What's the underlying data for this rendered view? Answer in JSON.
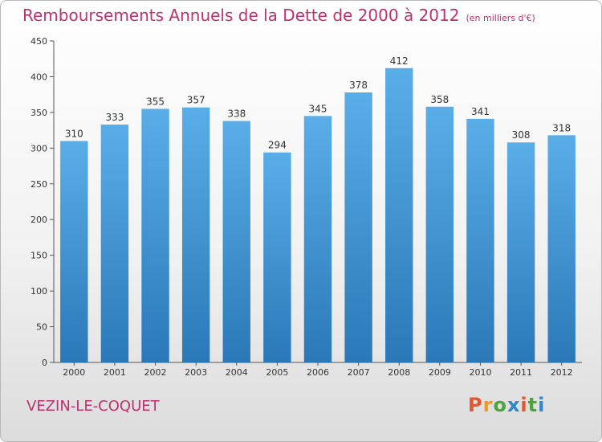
{
  "title": "Remboursements Annuels de la Dette de 2000 à 2012",
  "unit": "(en milliers d'€)",
  "city": "VEZIN-LE-COQUET",
  "logo": "Proxiti",
  "colors": {
    "bar_top": "#5aaee8",
    "bar_bottom": "#2a78b8",
    "title": "#c0306e"
  },
  "chart_data": {
    "type": "bar",
    "title": "Remboursements Annuels de la Dette de 2000 à 2012",
    "xlabel": "",
    "ylabel": "",
    "categories": [
      "2000",
      "2001",
      "2002",
      "2003",
      "2004",
      "2005",
      "2006",
      "2007",
      "2008",
      "2009",
      "2010",
      "2011",
      "2012"
    ],
    "values": [
      310,
      333,
      355,
      357,
      338,
      294,
      345,
      378,
      412,
      358,
      341,
      308,
      318
    ],
    "ylim": [
      0,
      450
    ],
    "yticks": [
      0,
      50,
      100,
      150,
      200,
      250,
      300,
      350,
      400,
      450
    ],
    "grid": false,
    "data_labels": true
  }
}
